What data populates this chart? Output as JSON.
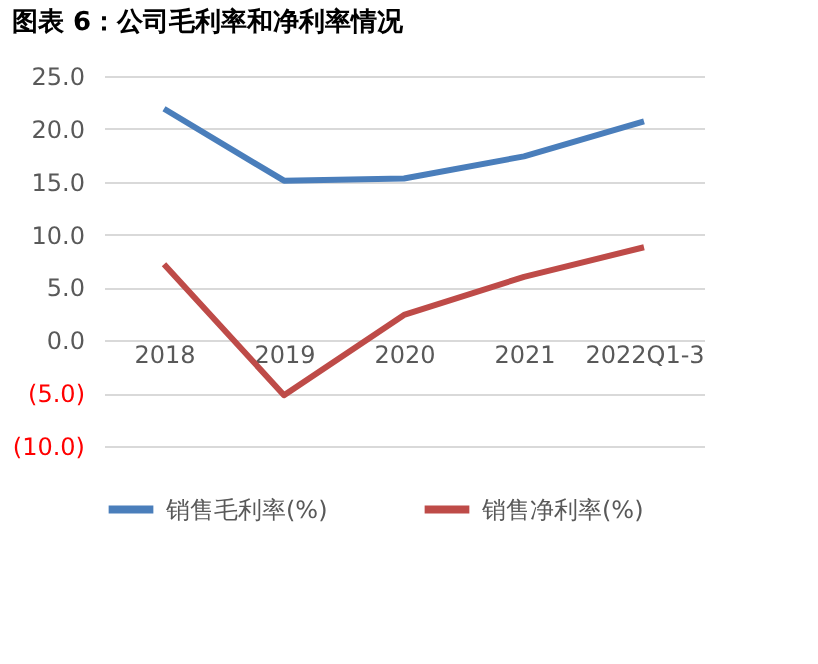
{
  "chart_data": {
    "type": "line",
    "title": "图表 6：公司毛利率和净利率情况",
    "categories": [
      "2018",
      "2019",
      "2020",
      "2021",
      "2022Q1-3"
    ],
    "series": [
      {
        "name": "销售毛利率(%)",
        "color": "#4a7ebb",
        "values": [
          21.9,
          15.1,
          15.3,
          17.4,
          20.7
        ]
      },
      {
        "name": "销售净利率(%)",
        "color": "#be4b48",
        "values": [
          7.2,
          -5.2,
          2.4,
          6.0,
          8.8
        ]
      }
    ],
    "ylim": [
      -10,
      25
    ],
    "yticks": [
      {
        "value": -10,
        "label": "(10.0)"
      },
      {
        "value": -5,
        "label": "(5.0)"
      },
      {
        "value": 0,
        "label": "0.0"
      },
      {
        "value": 5,
        "label": "5.0"
      },
      {
        "value": 10,
        "label": "10.0"
      },
      {
        "value": 15,
        "label": "15.0"
      },
      {
        "value": 20,
        "label": "20.0"
      },
      {
        "value": 25,
        "label": "25.0"
      }
    ],
    "grid": "y",
    "legend": "bottom",
    "marker": "none",
    "line_style": "solid"
  }
}
